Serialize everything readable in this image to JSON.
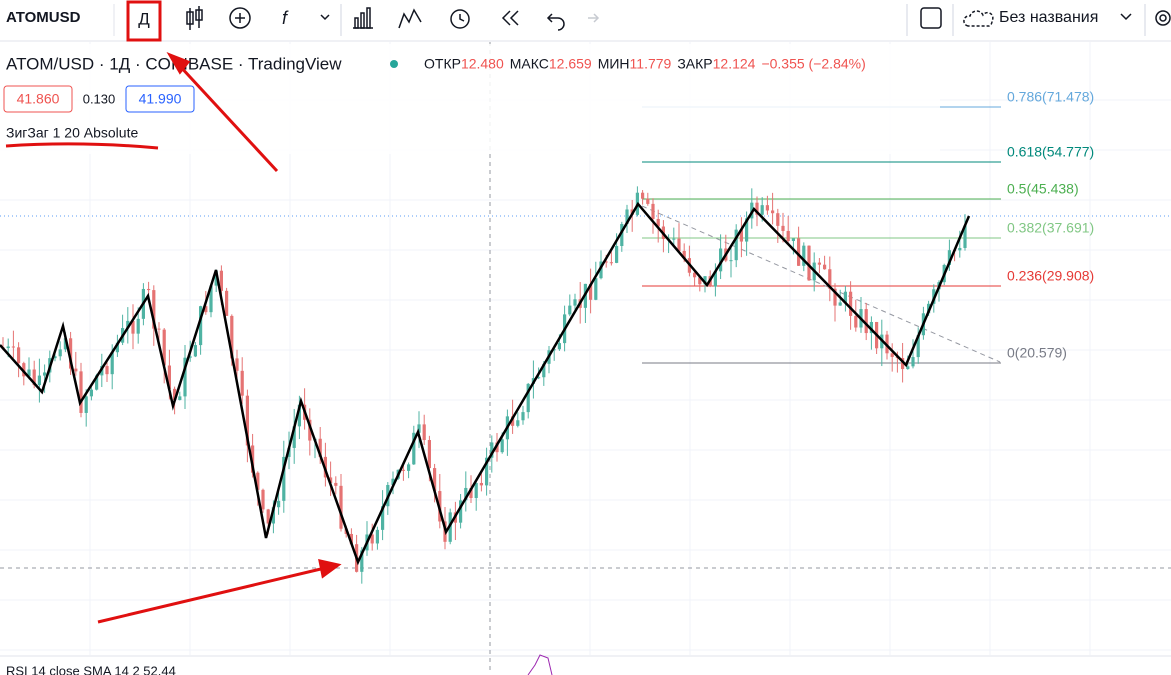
{
  "toolbar": {
    "symbol": "ATOMUSD",
    "interval": "Д",
    "layout_name": "Без названия"
  },
  "legend": {
    "title": "ATOM/USD · 1Д · COINBASE · TradingView",
    "ohlc": [
      {
        "label": "ОТКР",
        "value": "12.480"
      },
      {
        "label": "МАКС",
        "value": "12.659"
      },
      {
        "label": "МИН",
        "value": "11.779"
      },
      {
        "label": "ЗАКР",
        "value": "12.124"
      }
    ],
    "change": "−0.355 (−2.84%)",
    "sell": "41.860",
    "spread": "0.130",
    "buy": "41.990"
  },
  "indicator": "ЗигЗаг 1 20 Absolute",
  "fib_levels": [
    {
      "label": "0.786(71.478)",
      "color": "#64a8dc"
    },
    {
      "label": "0.618(54.777)",
      "color": "#00897b"
    },
    {
      "label": "0.5(45.438)",
      "color": "#4caf50"
    },
    {
      "label": "0.382(37.691)",
      "color": "#81c784"
    },
    {
      "label": "0.236(29.908)",
      "color": "#e53935"
    },
    {
      "label": "0(20.579)",
      "color": "#787b86"
    }
  ],
  "rsi": "RSI 14 close SMA 14 2 52.44"
}
